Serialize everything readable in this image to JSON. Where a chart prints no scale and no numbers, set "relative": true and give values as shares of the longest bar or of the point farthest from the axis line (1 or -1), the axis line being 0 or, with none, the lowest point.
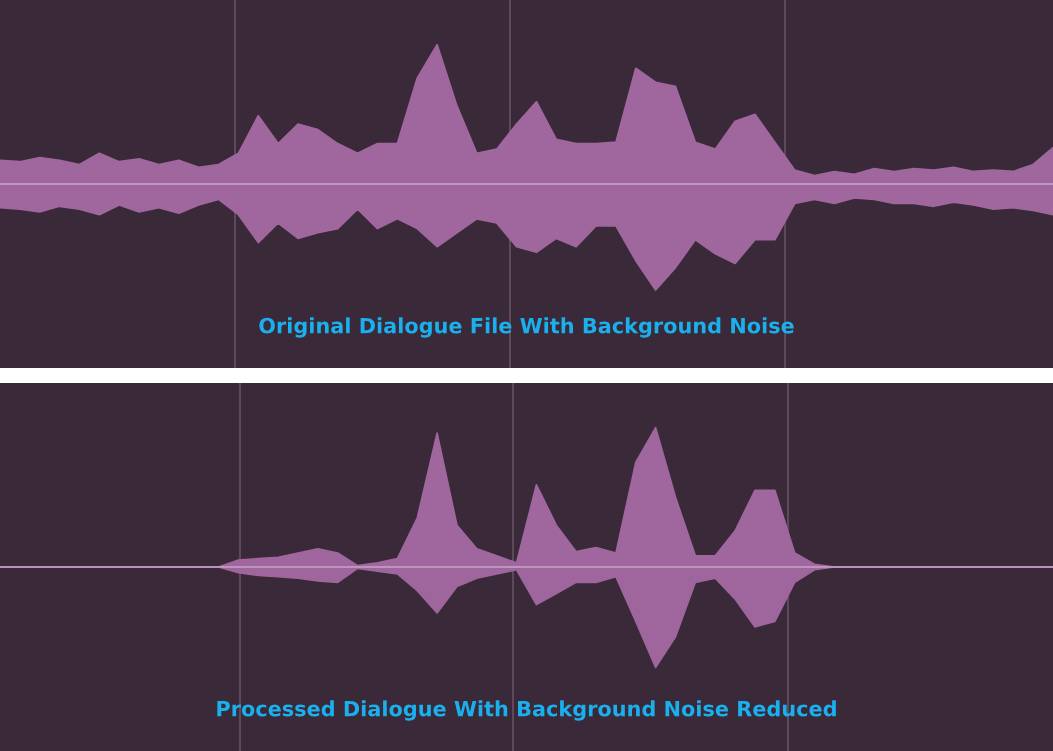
{
  "chart_data": [
    {
      "type": "area",
      "title": "Original Dialogue File With Background Noise",
      "relative": true,
      "categories": [
        null,
        null,
        null,
        null,
        null,
        null,
        null,
        null,
        null,
        null,
        null,
        null,
        null,
        null,
        null,
        null,
        null,
        null,
        null,
        null,
        null,
        null,
        null,
        null,
        null,
        null,
        null,
        null,
        null,
        null,
        null,
        null,
        null,
        null,
        null,
        null,
        null,
        null,
        null,
        null,
        null,
        null,
        null,
        null,
        null,
        null,
        null,
        null,
        null,
        null,
        null,
        null,
        null,
        null
      ],
      "series": [
        {
          "color": "#a0679e",
          "values": [
            0.17,
            0.16,
            0.19,
            0.17,
            0.14,
            0.22,
            0.16,
            0.18,
            0.14,
            0.17,
            0.12,
            0.14,
            0.22,
            0.49,
            0.29,
            0.43,
            0.39,
            0.29,
            0.22,
            0.29,
            0.29,
            0.76,
            1,
            0.56,
            0.22,
            0.25,
            0.43,
            0.59,
            0.32,
            0.29,
            0.29,
            0.3,
            0.83,
            0.73,
            0.7,
            0.3,
            0.25,
            0.45,
            0.5,
            0.3,
            0.1,
            0.06,
            0.09,
            0.07,
            0.11,
            0.09,
            0.11,
            0.1,
            0.12,
            0.09,
            0.1,
            0.09,
            0.14,
            0.26
          ]
        },
        {
          "color": "#a0679e",
          "values": [
            -0.17,
            -0.18,
            -0.2,
            -0.16,
            -0.18,
            -0.22,
            -0.15,
            -0.2,
            -0.17,
            -0.21,
            -0.15,
            -0.11,
            -0.22,
            -0.42,
            -0.28,
            -0.39,
            -0.35,
            -0.32,
            -0.18,
            -0.32,
            -0.25,
            -0.32,
            -0.45,
            -0.35,
            -0.25,
            -0.28,
            -0.45,
            -0.49,
            -0.39,
            -0.45,
            -0.3,
            -0.3,
            -0.55,
            -0.76,
            -0.6,
            -0.4,
            -0.5,
            -0.57,
            -0.4,
            -0.4,
            -0.14,
            -0.11,
            -0.14,
            -0.1,
            -0.11,
            -0.14,
            -0.14,
            -0.16,
            -0.13,
            -0.15,
            -0.18,
            -0.17,
            -0.19,
            -0.22
          ]
        }
      ]
    },
    {
      "type": "area",
      "title": "Processed Dialogue With Background Noise Reduced",
      "relative": true,
      "categories": [
        null,
        null,
        null,
        null,
        null,
        null,
        null,
        null,
        null,
        null,
        null,
        null,
        null,
        null,
        null,
        null,
        null,
        null,
        null,
        null,
        null,
        null,
        null,
        null,
        null,
        null,
        null,
        null,
        null,
        null,
        null,
        null,
        null,
        null,
        null,
        null,
        null,
        null,
        null,
        null,
        null,
        null,
        null,
        null,
        null,
        null,
        null,
        null,
        null,
        null,
        null,
        null,
        null,
        null
      ],
      "series": [
        {
          "color": "#a0679e",
          "values": [
            0,
            0,
            0,
            0,
            0,
            0,
            0,
            0,
            0,
            0,
            0,
            0,
            0.05,
            0.06,
            0.07,
            0.1,
            0.13,
            0.1,
            0.01,
            0.03,
            0.06,
            0.35,
            0.96,
            0.3,
            0.13,
            0.08,
            0.03,
            0.59,
            0.3,
            0.11,
            0.14,
            0.1,
            0.75,
            1,
            0.5,
            0.08,
            0.08,
            0.26,
            0.55,
            0.55,
            0.1,
            0.02,
            0,
            0,
            0,
            0,
            0,
            0,
            0,
            0,
            0,
            0,
            0,
            0
          ]
        },
        {
          "color": "#9f669d",
          "values": [
            0,
            0,
            0,
            0,
            0,
            0,
            0,
            0,
            0,
            0,
            0,
            0,
            -0.04,
            -0.06,
            -0.07,
            -0.08,
            -0.1,
            -0.11,
            -0.01,
            -0.03,
            -0.05,
            -0.17,
            -0.33,
            -0.14,
            -0.08,
            -0.05,
            -0.02,
            -0.27,
            -0.19,
            -0.11,
            -0.11,
            -0.07,
            -0.39,
            -0.72,
            -0.5,
            -0.11,
            -0.08,
            -0.23,
            -0.43,
            -0.39,
            -0.11,
            -0.02,
            0,
            0,
            0,
            0,
            0,
            0,
            0,
            0,
            0,
            0,
            0,
            0
          ]
        }
      ]
    }
  ]
}
